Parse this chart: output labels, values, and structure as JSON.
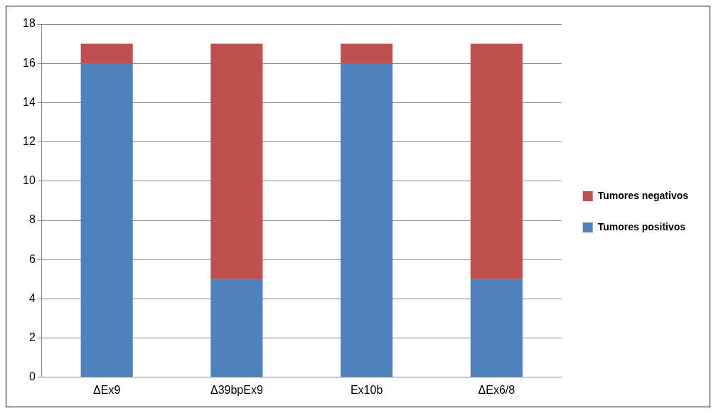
{
  "chart_data": {
    "type": "bar",
    "stacked": true,
    "categories": [
      "ΔEx9",
      "Δ39bpEx9",
      "Ex10b",
      "ΔEx6/8"
    ],
    "series": [
      {
        "name": "Tumores positivos",
        "color": "#4f81bd",
        "values": [
          16,
          5,
          16,
          5
        ]
      },
      {
        "name": "Tumores negativos",
        "color": "#c0504d",
        "values": [
          1,
          12,
          1,
          12
        ]
      }
    ],
    "ylim": [
      0,
      18
    ],
    "yticks": [
      0,
      2,
      4,
      6,
      8,
      10,
      12,
      14,
      16,
      18
    ],
    "grid": "y",
    "legend": "right"
  }
}
